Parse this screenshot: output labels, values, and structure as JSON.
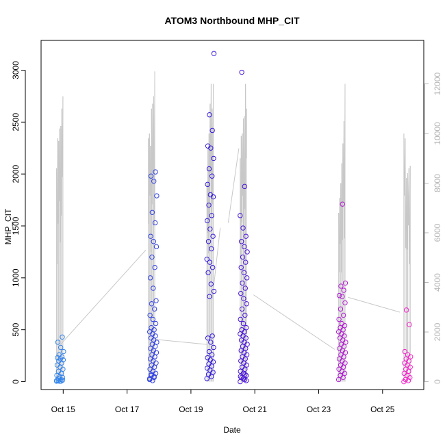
{
  "chart_data": {
    "type": "scatter",
    "title": "ATOM3 Northbound MHP_CIT",
    "xlabel": "Date",
    "ylabel": "MHP_CIT",
    "x_ticks": [
      "Oct 15",
      "Oct 17",
      "Oct 19",
      "Oct 21",
      "Oct 23",
      "Oct 25"
    ],
    "y_ticks": [
      0,
      500,
      1000,
      1500,
      2000,
      2500,
      3000
    ],
    "y2_ticks": [
      0,
      2000,
      4000,
      6000,
      8000,
      10000,
      12000
    ],
    "xlim": [
      "2023-10-14 00:00",
      "2023-10-26 00:00"
    ],
    "ylim": [
      0,
      3200
    ],
    "y2lim": [
      0,
      12500
    ],
    "colors": {
      "points_start": "#3399ee",
      "points_mid": "#3311dd",
      "points_end": "#ff22cc",
      "line": "#c8c8c8"
    },
    "series": [
      {
        "kind": "points",
        "axis": "left",
        "clusters": [
          {
            "date": "2023-10-14 19:00",
            "values": [
              10,
              20,
              30,
              40,
              50,
              60,
              80,
              100,
              120,
              140,
              160,
              180,
              200,
              210,
              220,
              230,
              240,
              260,
              290,
              330,
              380,
              430,
              5,
              5,
              5,
              10,
              15
            ]
          },
          {
            "date": "2023-10-17 17:00",
            "values": [
              20,
              40,
              60,
              80,
              100,
              120,
              140,
              160,
              180,
              200,
              220,
              240,
              260,
              280,
              300,
              320,
              340,
              360,
              380,
              400,
              420,
              440,
              460,
              480,
              500,
              520,
              560,
              600,
              640,
              700,
              750,
              780,
              900,
              1000,
              1100,
              1200,
              1300,
              1350,
              1400,
              1530,
              1630,
              1790,
              1930,
              1980,
              2020,
              10,
              30,
              50,
              70
            ]
          },
          {
            "date": "2023-10-19 12:00",
            "values": [
              30,
              50,
              70,
              90,
              110,
              130,
              150,
              170,
              190,
              210,
              230,
              260,
              290,
              330,
              380,
              420,
              440,
              820,
              870,
              940,
              1050,
              1100,
              1150,
              1180,
              1280,
              1350,
              1400,
              1470,
              1550,
              1600,
              1700,
              1780,
              1800,
              1900,
              1980,
              2050,
              2150,
              2250,
              2270,
              2420,
              2570,
              3160
            ]
          },
          {
            "date": "2023-10-20 13:00",
            "values": [
              0,
              20,
              40,
              60,
              80,
              100,
              120,
              140,
              160,
              180,
              200,
              220,
              240,
              260,
              280,
              300,
              320,
              340,
              360,
              380,
              400,
              420,
              440,
              460,
              480,
              500,
              520,
              560,
              600,
              640,
              700,
              750,
              800,
              850,
              900,
              950,
              1000,
              1050,
              1100,
              1150,
              1200,
              1250,
              1300,
              1350,
              1400,
              1480,
              1600,
              1880,
              2980,
              10,
              30,
              50,
              70
            ]
          },
          {
            "date": "2023-10-23 15:00",
            "values": [
              20,
              40,
              60,
              80,
              100,
              120,
              140,
              160,
              180,
              200,
              220,
              240,
              260,
              280,
              300,
              320,
              340,
              360,
              380,
              400,
              420,
              440,
              460,
              480,
              500,
              520,
              540,
              560,
              600,
              640,
              700,
              760,
              820,
              830,
              880,
              920,
              950,
              1710
            ]
          },
          {
            "date": "2023-10-25 16:00",
            "values": [
              0,
              10,
              20,
              40,
              60,
              80,
              100,
              120,
              140,
              160,
              180,
              200,
              220,
              240,
              260,
              290,
              550,
              690
            ]
          }
        ]
      },
      {
        "kind": "line",
        "axis": "right",
        "bursts": [
          {
            "date": "2023-10-14 19:00",
            "peaks": [
              8600,
              9800,
              9700,
              10200,
              10300,
              11000,
              11500
            ]
          },
          {
            "date": "2023-10-17 16:00",
            "peaks": [
              9800,
              10000,
              9500,
              11000,
              11200,
              11500,
              12500
            ]
          },
          {
            "date": "2023-10-19 12:00",
            "peaks": [
              8000,
              9400,
              10000,
              11200,
              12000,
              11000,
              12000
            ]
          },
          {
            "date": "2023-10-20 13:00",
            "peaks": [
              9000,
              9900,
              10000,
              10600,
              10700,
              12000,
              11000
            ]
          },
          {
            "date": "2023-10-23 15:00",
            "peaks": [
              6800,
              7400,
              8000,
              8800,
              9600,
              10500,
              12000
            ]
          },
          {
            "date": "2023-10-25 16:00",
            "peaks": [
              10000,
              9800,
              8200,
              8400,
              8600,
              8700
            ]
          }
        ],
        "connectors": [
          {
            "from": [
              "2023-10-14 22:00",
              1500
            ],
            "to": [
              "2023-10-17 14:00",
              5300
            ]
          },
          {
            "from": [
              "2023-10-17 22:00",
              1700
            ],
            "to": [
              "2023-10-19 12:00",
              1500
            ]
          },
          {
            "from": [
              "2023-10-19 16:00",
              3300
            ],
            "to": [
              "2023-10-19 22:00",
              6200
            ]
          },
          {
            "from": [
              "2023-10-20 04:00",
              6400
            ],
            "to": [
              "2023-10-20 12:00",
              9400
            ]
          },
          {
            "from": [
              "2023-10-20 23:00",
              3500
            ],
            "to": [
              "2023-10-23 12:00",
              1300
            ]
          },
          {
            "from": [
              "2023-10-23 22:00",
              3400
            ],
            "to": [
              "2023-10-25 13:00",
              2800
            ]
          }
        ]
      }
    ]
  }
}
